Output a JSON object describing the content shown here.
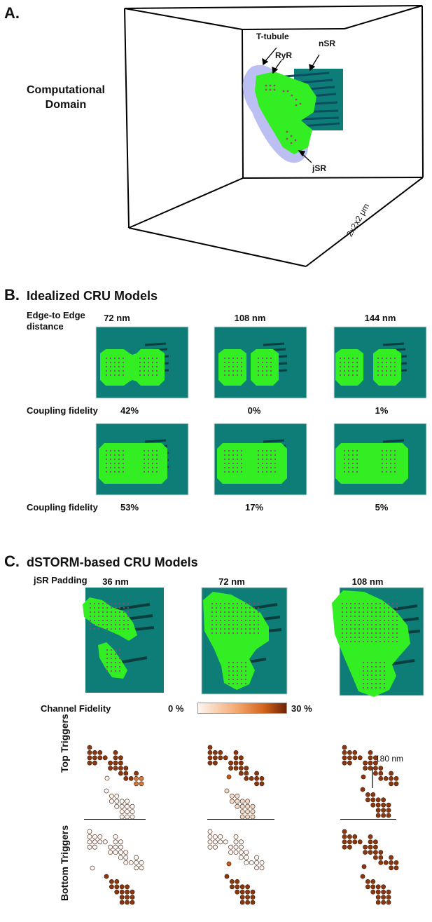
{
  "panels": {
    "a": {
      "label": "A.",
      "domain_label": [
        "Computational",
        "Domain"
      ],
      "annotations": {
        "t_tubule": "T-tubule",
        "ryr": "RyR",
        "nsr": "nSR",
        "jsr": "jSR",
        "size": "2x2x2 μm"
      }
    },
    "b": {
      "label": "B.",
      "title": "Idealized CRU Models",
      "distance_label": [
        "Edge-to Edge",
        "distance"
      ],
      "distances": [
        "72 nm",
        "108 nm",
        "144 nm"
      ],
      "fidelity_label": "Coupling fidelity",
      "row1_fidelity": [
        "42%",
        "0%",
        "1%"
      ],
      "row2_fidelity": [
        "53%",
        "17%",
        "5%"
      ]
    },
    "c": {
      "label": "C.",
      "title": "dSTORM-based CRU Models",
      "padding_label": "jSR Padding",
      "paddings": [
        "36 nm",
        "72 nm",
        "108 nm"
      ],
      "channel_fidelity_label": "Channel Fidelity",
      "scale_min": "0 %",
      "scale_max": "30 %",
      "top_label": "Top Triggers",
      "bottom_label": "Bottom Triggers",
      "distance_annotation": "180 nm"
    }
  },
  "colors": {
    "green": "#33ee22",
    "teal": "#0e7d78",
    "lavender": "#b4b8f0",
    "scale_low": "#fbeee4",
    "scale_high": "#7a2a08"
  }
}
